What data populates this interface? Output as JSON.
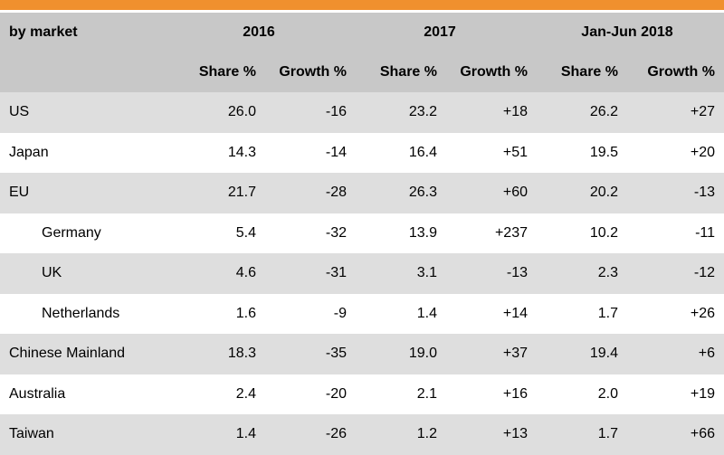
{
  "header": {
    "market_label": "by market",
    "years": [
      "2016",
      "2017",
      "Jan-Jun 2018"
    ],
    "sub_headers": [
      "Share %",
      "Growth %",
      "Share %",
      "Growth %",
      "Share %",
      "Growth %"
    ]
  },
  "rows": [
    {
      "market": "US",
      "indent": false,
      "values": [
        "26.0",
        "-16",
        "23.2",
        "+18",
        "26.2",
        "+27"
      ]
    },
    {
      "market": "Japan",
      "indent": false,
      "values": [
        "14.3",
        "-14",
        "16.4",
        "+51",
        "19.5",
        "+20"
      ]
    },
    {
      "market": "EU",
      "indent": false,
      "values": [
        "21.7",
        "-28",
        "26.3",
        "+60",
        "20.2",
        "-13"
      ]
    },
    {
      "market": "Germany",
      "indent": true,
      "values": [
        "5.4",
        "-32",
        "13.9",
        "+237",
        "10.2",
        "-11"
      ]
    },
    {
      "market": "UK",
      "indent": true,
      "values": [
        "4.6",
        "-31",
        "3.1",
        "-13",
        "2.3",
        "-12"
      ]
    },
    {
      "market": "Netherlands",
      "indent": true,
      "values": [
        "1.6",
        "-9",
        "1.4",
        "+14",
        "1.7",
        "+26"
      ]
    },
    {
      "market": "Chinese Mainland",
      "indent": false,
      "values": [
        "18.3",
        "-35",
        "19.0",
        "+37",
        "19.4",
        "+6"
      ]
    },
    {
      "market": "Australia",
      "indent": false,
      "values": [
        "2.4",
        "-20",
        "2.1",
        "+16",
        "2.0",
        "+19"
      ]
    },
    {
      "market": "Taiwan",
      "indent": false,
      "values": [
        "1.4",
        "-26",
        "1.2",
        "+13",
        "1.7",
        "+66"
      ]
    }
  ],
  "colors": {
    "accent_bar": "#f0902e",
    "header_bg": "#c8c8c8",
    "shaded_row_bg": "#dedede"
  }
}
